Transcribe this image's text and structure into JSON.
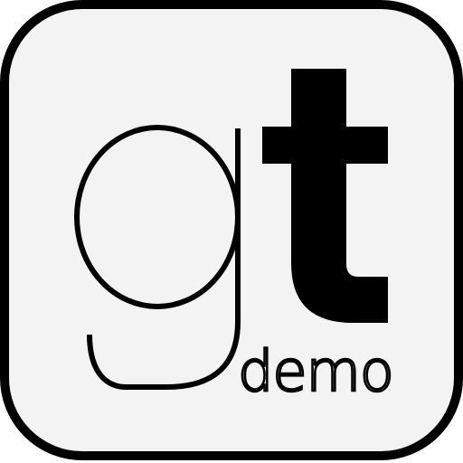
{
  "app_icon": {
    "name": "gt demo",
    "background": "#f3f3f3",
    "border": "#000000",
    "ink": "#000000"
  },
  "logo": {
    "letter_g": "g",
    "letter_t": "t",
    "wordmark": "demo"
  }
}
